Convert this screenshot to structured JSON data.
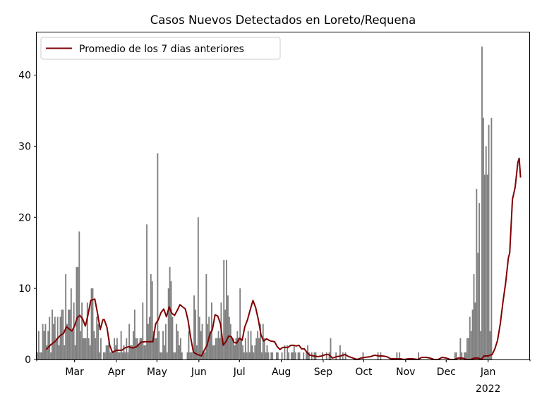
{
  "chart_data": {
    "type": "bar",
    "title": "Casos Nuevos Detectados en Loreto/Requena",
    "xlabel": "",
    "ylabel": "",
    "x_start": "2021-02-01",
    "x_end": "2022-01-31",
    "ylim": [
      0,
      46
    ],
    "yticks": [
      0,
      10,
      20,
      30,
      40
    ],
    "xticks": [
      {
        "date": "2021-03-01",
        "label": "Mar"
      },
      {
        "date": "2021-04-01",
        "label": "Apr"
      },
      {
        "date": "2021-05-01",
        "label": "May"
      },
      {
        "date": "2021-06-01",
        "label": "Jun"
      },
      {
        "date": "2021-07-01",
        "label": "Jul"
      },
      {
        "date": "2021-08-01",
        "label": "Aug"
      },
      {
        "date": "2021-09-01",
        "label": "Sep"
      },
      {
        "date": "2021-10-01",
        "label": "Oct"
      },
      {
        "date": "2021-11-01",
        "label": "Nov"
      },
      {
        "date": "2021-12-01",
        "label": "Dec"
      },
      {
        "date": "2022-01-01",
        "label": "Jan",
        "sublabel": "2022"
      }
    ],
    "grid": false,
    "legend": {
      "position": "top-left",
      "entries": [
        {
          "name": "Promedio de los 7 dias anteriores",
          "color": "#800000"
        }
      ]
    },
    "bar_color": "#808080",
    "line_color": "#800000",
    "daily_start": "2021-02-01",
    "series": [
      {
        "name": "Casos nuevos",
        "kind": "bar",
        "values": [
          1,
          4,
          1,
          1,
          5,
          4,
          5,
          2,
          4,
          6,
          1,
          7,
          5,
          6,
          3,
          6,
          2,
          6,
          7,
          7,
          2,
          12,
          5,
          7,
          7,
          10,
          4,
          8,
          2,
          13,
          13,
          18,
          4,
          8,
          3,
          3,
          3,
          8,
          3,
          2,
          10,
          10,
          4,
          3,
          6,
          5,
          1,
          3,
          0,
          1,
          1,
          2,
          2,
          3,
          1,
          1,
          1,
          3,
          2,
          3,
          1,
          1,
          4,
          1,
          2,
          1,
          3,
          1,
          5,
          2,
          2,
          4,
          7,
          3,
          3,
          2,
          3,
          3,
          8,
          2,
          2,
          19,
          5,
          6,
          12,
          11,
          4,
          3,
          3,
          29,
          4,
          1,
          1,
          4,
          2,
          5,
          1,
          10,
          13,
          11,
          6,
          1,
          1,
          5,
          4,
          2,
          3,
          1,
          0,
          0,
          0,
          1,
          4,
          1,
          1,
          1,
          9,
          7,
          2,
          20,
          6,
          4,
          5,
          1,
          1,
          12,
          5,
          6,
          4,
          8,
          2,
          2,
          3,
          3,
          4,
          3,
          8,
          3,
          14,
          7,
          14,
          9,
          6,
          5,
          3,
          3,
          2,
          3,
          4,
          3,
          10,
          3,
          2,
          1,
          3,
          1,
          4,
          1,
          4,
          2,
          1,
          2,
          3,
          4,
          3,
          5,
          1,
          5,
          3,
          1,
          2,
          1,
          0,
          1,
          1,
          0,
          0,
          1,
          1,
          0,
          0,
          1,
          0,
          2,
          0,
          2,
          1,
          0,
          1,
          1,
          2,
          1,
          0,
          1,
          1,
          0,
          0,
          1,
          0,
          1,
          2,
          1,
          0,
          1,
          0,
          1,
          1,
          0,
          0,
          0,
          0,
          1,
          0,
          0,
          1,
          0,
          1,
          3,
          0,
          0,
          0,
          1,
          0,
          0,
          2,
          0,
          1,
          0,
          1,
          0,
          0,
          0,
          0,
          0,
          0,
          0,
          0,
          0,
          0,
          0,
          0,
          1,
          0,
          0,
          0,
          0,
          0,
          0,
          0,
          0,
          0,
          0,
          1,
          0,
          1,
          0,
          0,
          0,
          0,
          0,
          0,
          0,
          0,
          0,
          0,
          0,
          1,
          0,
          1,
          0,
          0,
          0,
          0,
          0,
          0,
          0,
          0,
          0,
          0,
          0,
          0,
          0,
          1,
          0,
          0,
          0,
          0,
          0,
          0,
          0,
          0,
          0,
          0,
          0,
          0,
          0,
          0,
          0,
          0,
          0,
          0,
          0,
          0,
          0,
          0,
          0,
          0,
          0,
          0,
          1,
          1,
          0,
          0,
          3,
          1,
          0,
          1,
          1,
          3,
          3,
          6,
          4,
          7,
          12,
          8,
          24,
          15,
          22,
          4,
          44,
          34,
          26,
          30,
          26,
          33,
          4,
          34
        ]
      },
      {
        "name": "Promedio de los 7 dias anteriores",
        "kind": "line",
        "x_start": "2021-02-08",
        "points": [
          [
            0,
            1.4
          ],
          [
            3,
            2.0
          ],
          [
            7,
            2.6
          ],
          [
            10,
            3.3
          ],
          [
            13,
            3.7
          ],
          [
            15,
            4.6
          ],
          [
            17,
            4.3
          ],
          [
            19,
            4.0
          ],
          [
            21,
            4.7
          ],
          [
            23,
            5.9
          ],
          [
            25,
            6.2
          ],
          [
            27,
            5.7
          ],
          [
            29,
            4.7
          ],
          [
            31,
            6.3
          ],
          [
            33,
            8.3
          ],
          [
            36,
            8.5
          ],
          [
            38,
            6.5
          ],
          [
            40,
            4.2
          ],
          [
            42,
            5.6
          ],
          [
            43,
            5.6
          ],
          [
            45,
            4.5
          ],
          [
            47,
            2.0
          ],
          [
            49,
            1.0
          ],
          [
            52,
            1.3
          ],
          [
            56,
            1.3
          ],
          [
            58,
            1.6
          ],
          [
            61,
            1.8
          ],
          [
            64,
            1.6
          ],
          [
            67,
            1.8
          ],
          [
            70,
            2.4
          ],
          [
            73,
            2.5
          ],
          [
            76,
            2.5
          ],
          [
            79,
            2.5
          ],
          [
            81,
            5.0
          ],
          [
            83,
            5.6
          ],
          [
            85,
            6.6
          ],
          [
            87,
            7.1
          ],
          [
            89,
            6.0
          ],
          [
            91,
            7.4
          ],
          [
            93,
            6.5
          ],
          [
            95,
            6.2
          ],
          [
            97,
            6.9
          ],
          [
            99,
            7.7
          ],
          [
            101,
            7.4
          ],
          [
            103,
            7.1
          ],
          [
            105,
            5.5
          ],
          [
            107,
            3.0
          ],
          [
            109,
            1.0
          ],
          [
            112,
            0.7
          ],
          [
            115,
            0.5
          ],
          [
            117,
            1.3
          ],
          [
            119,
            2.0
          ],
          [
            121,
            3.5
          ],
          [
            123,
            4.2
          ],
          [
            125,
            6.3
          ],
          [
            127,
            6.1
          ],
          [
            129,
            5.0
          ],
          [
            131,
            2.0
          ],
          [
            133,
            2.5
          ],
          [
            135,
            3.3
          ],
          [
            137,
            3.2
          ],
          [
            139,
            2.4
          ],
          [
            141,
            2.3
          ],
          [
            143,
            3.0
          ],
          [
            145,
            2.7
          ],
          [
            147,
            4.6
          ],
          [
            149,
            5.6
          ],
          [
            151,
            7.0
          ],
          [
            153,
            8.3
          ],
          [
            155,
            7.3
          ],
          [
            157,
            5.6
          ],
          [
            159,
            3.4
          ],
          [
            161,
            2.6
          ],
          [
            163,
            2.9
          ],
          [
            166,
            2.6
          ],
          [
            169,
            2.5
          ],
          [
            171,
            1.8
          ],
          [
            173,
            1.4
          ],
          [
            175,
            1.7
          ],
          [
            177,
            1.7
          ],
          [
            179,
            1.7
          ],
          [
            181,
            2.0
          ],
          [
            183,
            2.0
          ],
          [
            185,
            1.9
          ],
          [
            187,
            2.0
          ],
          [
            189,
            1.5
          ],
          [
            191,
            1.5
          ],
          [
            193,
            1.0
          ],
          [
            195,
            0.6
          ],
          [
            198,
            0.5
          ],
          [
            201,
            0.4
          ],
          [
            204,
            0.5
          ],
          [
            207,
            0.7
          ],
          [
            209,
            0.7
          ],
          [
            212,
            0.2
          ],
          [
            215,
            0.4
          ],
          [
            218,
            0.5
          ],
          [
            221,
            0.7
          ],
          [
            224,
            0.4
          ],
          [
            227,
            0.2
          ],
          [
            230,
            0.0
          ],
          [
            233,
            0.2
          ],
          [
            236,
            0.3
          ],
          [
            240,
            0.4
          ],
          [
            243,
            0.6
          ],
          [
            246,
            0.5
          ],
          [
            249,
            0.5
          ],
          [
            252,
            0.4
          ],
          [
            255,
            0.1
          ],
          [
            258,
            0.1
          ],
          [
            262,
            0.1
          ],
          [
            265,
            0.0
          ],
          [
            268,
            0.1
          ],
          [
            271,
            0.1
          ],
          [
            275,
            0.0
          ],
          [
            278,
            0.3
          ],
          [
            281,
            0.3
          ],
          [
            284,
            0.2
          ],
          [
            287,
            0.0
          ],
          [
            290,
            0.0
          ],
          [
            293,
            0.3
          ],
          [
            296,
            0.2
          ],
          [
            299,
            0.0
          ],
          [
            302,
            0.0
          ],
          [
            305,
            0.2
          ],
          [
            308,
            0.2
          ],
          [
            311,
            0.0
          ],
          [
            314,
            0.0
          ],
          [
            317,
            0.2
          ],
          [
            320,
            0.2
          ],
          [
            322,
            0.0
          ],
          [
            324,
            0.5
          ],
          [
            327,
            0.5
          ],
          [
            330,
            0.7
          ],
          [
            332,
            1.5
          ],
          [
            334,
            2.7
          ],
          [
            336,
            5.0
          ],
          [
            338,
            8.1
          ],
          [
            340,
            10.8
          ],
          [
            342,
            14.3
          ],
          [
            343,
            15.0
          ],
          [
            345,
            22.5
          ],
          [
            347,
            24.2
          ],
          [
            349,
            27.7
          ],
          [
            350,
            28.3
          ],
          [
            351,
            25.6
          ]
        ]
      }
    ]
  }
}
